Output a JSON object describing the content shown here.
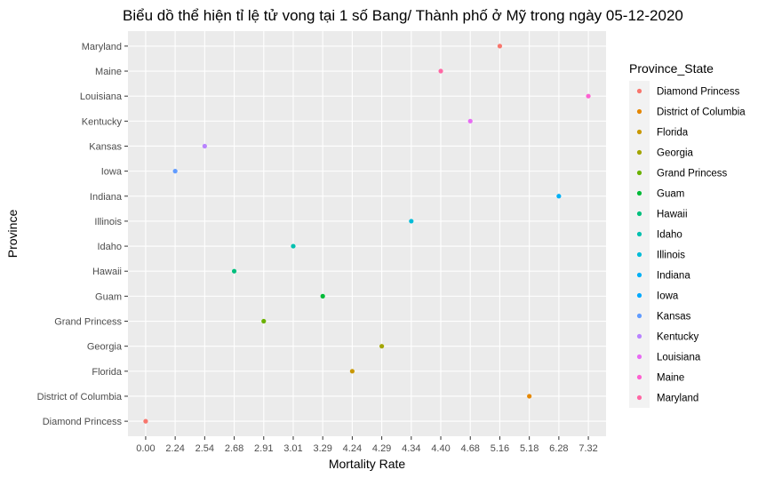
{
  "chart_data": {
    "type": "scatter",
    "title": "Biểu dồ thể hiện tỉ lệ tử vong tại 1 số Bang/ Thành phố ở Mỹ trong ngày 05-12-2020",
    "xlabel": "Mortality Rate",
    "ylabel": "Province",
    "x_axis_type": "discrete",
    "x_categories": [
      "0.00",
      "2.24",
      "2.54",
      "2.68",
      "2.91",
      "3.01",
      "3.29",
      "4.24",
      "4.29",
      "4.34",
      "4.40",
      "4.68",
      "5.16",
      "5.18",
      "6.28",
      "7.32"
    ],
    "y_categories": [
      "Diamond Princess",
      "District of Columbia",
      "Florida",
      "Georgia",
      "Grand Princess",
      "Guam",
      "Hawaii",
      "Idaho",
      "Illinois",
      "Indiana",
      "Iowa",
      "Kansas",
      "Kentucky",
      "Louisiana",
      "Maine",
      "Maryland"
    ],
    "points": [
      {
        "y": "Diamond Princess",
        "x": "0.00",
        "color": "#F8766D"
      },
      {
        "y": "District of Columbia",
        "x": "5.18",
        "color": "#E58700"
      },
      {
        "y": "Florida",
        "x": "4.24",
        "color": "#C99800"
      },
      {
        "y": "Georgia",
        "x": "4.29",
        "color": "#A3A500"
      },
      {
        "y": "Grand Princess",
        "x": "2.91",
        "color": "#6BB100"
      },
      {
        "y": "Guam",
        "x": "3.29",
        "color": "#00BA38"
      },
      {
        "y": "Hawaii",
        "x": "2.68",
        "color": "#00BF7D"
      },
      {
        "y": "Idaho",
        "x": "3.01",
        "color": "#00C0AF"
      },
      {
        "y": "Illinois",
        "x": "4.34",
        "color": "#00BCD8"
      },
      {
        "y": "Indiana",
        "x": "6.28",
        "color": "#00B0F6"
      },
      {
        "y": "Iowa",
        "x": "2.24",
        "color": "#619CFF"
      },
      {
        "y": "Kansas",
        "x": "2.54",
        "color": "#B983FF"
      },
      {
        "y": "Kentucky",
        "x": "4.68",
        "color": "#E76BF3"
      },
      {
        "y": "Louisiana",
        "x": "7.32",
        "color": "#FD61D1"
      },
      {
        "y": "Maine",
        "x": "4.40",
        "color": "#FF67A4"
      },
      {
        "y": "Maryland",
        "x": "5.16",
        "color": "#F8766D"
      }
    ],
    "legend": {
      "title": "Province_State",
      "position": "right",
      "items": [
        {
          "label": "Diamond Princess",
          "color": "#F8766D"
        },
        {
          "label": "District of Columbia",
          "color": "#E58700"
        },
        {
          "label": "Florida",
          "color": "#C99800"
        },
        {
          "label": "Georgia",
          "color": "#A3A500"
        },
        {
          "label": "Grand Princess",
          "color": "#6BB100"
        },
        {
          "label": "Guam",
          "color": "#00BA38"
        },
        {
          "label": "Hawaii",
          "color": "#00BF7D"
        },
        {
          "label": "Idaho",
          "color": "#00C0AF"
        },
        {
          "label": "Illinois",
          "color": "#00BCD8"
        },
        {
          "label": "Indiana",
          "color": "#00B0F6"
        },
        {
          "label": "Iowa",
          "color": "#00A9FF"
        },
        {
          "label": "Kansas",
          "color": "#619CFF"
        },
        {
          "label": "Kentucky",
          "color": "#B983FF"
        },
        {
          "label": "Louisiana",
          "color": "#E76BF3"
        },
        {
          "label": "Maine",
          "color": "#FD61D1"
        },
        {
          "label": "Maryland",
          "color": "#FF67A4"
        }
      ]
    },
    "grid": true,
    "panel_background": "#EBEBEB",
    "grid_color": "#FFFFFF"
  }
}
